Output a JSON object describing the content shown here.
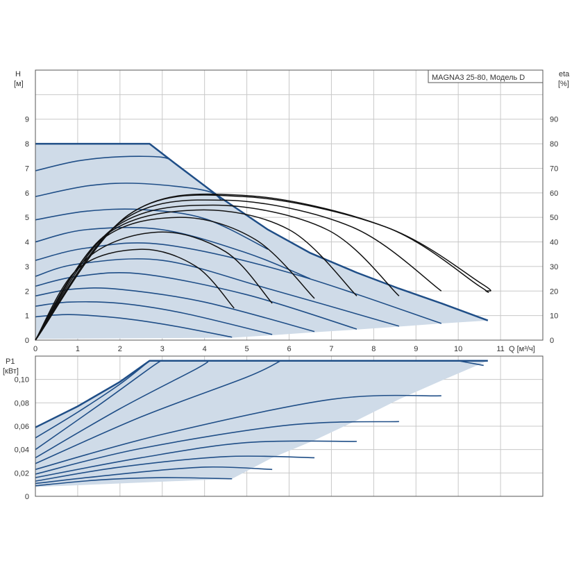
{
  "colors": {
    "curve": "#1f4e87",
    "eta": "#111111",
    "fill": "#cfdbe8",
    "grid": "#c8c8c8",
    "frame": "#555555"
  },
  "chart_data": [
    {
      "type": "line",
      "title": "MAGNA3 25-80, Модель D",
      "xlabel": "Q [м³/ч]",
      "ylabel": "H",
      "ylabel_unit": "[м]",
      "y2label": "eta",
      "y2label_unit": "[%]",
      "xlim": [
        0,
        12
      ],
      "ylim": [
        0,
        11
      ],
      "y2lim": [
        0,
        110
      ],
      "grid": true,
      "x_ticks": [
        "0",
        "1",
        "2",
        "3",
        "4",
        "5",
        "6",
        "7",
        "8",
        "9",
        "10",
        "11"
      ],
      "y_ticks": [
        "0",
        "1",
        "2",
        "3",
        "4",
        "5",
        "6",
        "7",
        "8",
        "9"
      ],
      "y2_ticks": [
        "0",
        "10",
        "20",
        "30",
        "40",
        "50",
        "60",
        "70",
        "80",
        "90"
      ],
      "envelope": [
        [
          0,
          8.0
        ],
        [
          2.7,
          8.0
        ],
        [
          3.3,
          7.2
        ],
        [
          4.3,
          5.9
        ],
        [
          5.5,
          4.5
        ],
        [
          6.5,
          3.55
        ],
        [
          7.6,
          2.75
        ],
        [
          8.6,
          2.1
        ],
        [
          9.6,
          1.5
        ],
        [
          10.7,
          0.8
        ],
        [
          9.6,
          0.68
        ],
        [
          8.6,
          0.55
        ],
        [
          7.6,
          0.43
        ],
        [
          6.6,
          0.32
        ],
        [
          5.6,
          0.2
        ],
        [
          4.65,
          0.1
        ],
        [
          0,
          0.05
        ]
      ],
      "head_curves": [
        {
          "x": [
            0,
            0.8,
            2.0,
            3.2,
            4.65
          ],
          "y": [
            0.95,
            1.04,
            0.9,
            0.6,
            0.12
          ]
        },
        {
          "x": [
            0,
            0.8,
            2.0,
            3.5,
            5.6
          ],
          "y": [
            1.38,
            1.55,
            1.5,
            1.1,
            0.23
          ]
        },
        {
          "x": [
            0,
            0.9,
            2.0,
            4.0,
            6.6
          ],
          "y": [
            1.8,
            2.08,
            2.07,
            1.55,
            0.35
          ]
        },
        {
          "x": [
            0,
            1.0,
            2.5,
            5.0,
            7.6
          ],
          "y": [
            2.2,
            2.6,
            2.7,
            1.85,
            0.45
          ]
        },
        {
          "x": [
            0,
            1.0,
            3.0,
            5.5,
            8.6
          ],
          "y": [
            2.6,
            3.1,
            3.25,
            2.1,
            0.57
          ]
        },
        {
          "x": [
            0,
            1.2,
            3.0,
            6.0,
            9.6
          ],
          "y": [
            3.25,
            3.75,
            3.9,
            2.75,
            0.68
          ]
        },
        {
          "x": [
            0,
            1.2,
            3.0,
            5.0,
            6.5
          ],
          "y": [
            4.0,
            4.5,
            4.5,
            3.55,
            2.5
          ]
        },
        {
          "x": [
            0,
            1.2,
            2.5,
            4.0,
            5.5
          ],
          "y": [
            4.9,
            5.25,
            5.32,
            4.95,
            3.7
          ]
        },
        {
          "x": [
            0,
            1.3,
            2.5,
            4.0,
            4.4
          ],
          "y": [
            5.85,
            6.3,
            6.38,
            6.1,
            5.7
          ]
        },
        {
          "x": [
            0,
            1.0,
            2.0,
            3.0,
            3.3
          ],
          "y": [
            6.9,
            7.3,
            7.47,
            7.45,
            7.2
          ]
        }
      ],
      "eta_curves": [
        {
          "x": [
            0,
            1.0,
            2.5,
            3.8,
            4.7
          ],
          "y": [
            0,
            29,
            37,
            30,
            13
          ]
        },
        {
          "x": [
            0,
            1.2,
            2.9,
            4.5,
            5.6
          ],
          "y": [
            0,
            33,
            44,
            36,
            15
          ]
        },
        {
          "x": [
            0,
            1.5,
            3.4,
            5.2,
            6.6
          ],
          "y": [
            0,
            40,
            50,
            41,
            17
          ]
        },
        {
          "x": [
            0,
            1.6,
            3.8,
            6.0,
            7.6
          ],
          "y": [
            0,
            42,
            53,
            45,
            18
          ]
        },
        {
          "x": [
            0,
            1.8,
            4.2,
            6.9,
            8.6
          ],
          "y": [
            0,
            45,
            55,
            45,
            18
          ]
        },
        {
          "x": [
            0,
            2.0,
            4.5,
            7.5,
            9.6
          ],
          "y": [
            0,
            48,
            57,
            46,
            20
          ]
        },
        {
          "x": [
            0,
            2.2,
            4.9,
            8.3,
            10.5,
            10.65
          ],
          "y": [
            0,
            51,
            59,
            46,
            22,
            20
          ]
        },
        {
          "x": [
            0,
            2.2,
            4.9,
            8.3,
            10.55,
            10.7
          ],
          "y": [
            0,
            51,
            58.5,
            46,
            23,
            20
          ]
        }
      ]
    },
    {
      "type": "line",
      "ylabel": "P1",
      "ylabel_unit": "[кВт]",
      "xlim": [
        0,
        12
      ],
      "ylim": [
        0,
        0.12
      ],
      "grid": true,
      "y_ticks": [
        "0",
        "0,02",
        "0,04",
        "0,06",
        "0,08",
        "0,10"
      ],
      "envelope": [
        [
          0,
          0.059
        ],
        [
          1.0,
          0.077
        ],
        [
          2.0,
          0.098
        ],
        [
          2.7,
          0.116
        ],
        [
          10.7,
          0.116
        ],
        [
          9.6,
          0.099
        ],
        [
          8.6,
          0.083
        ],
        [
          7.6,
          0.065
        ],
        [
          6.6,
          0.048
        ],
        [
          5.6,
          0.033
        ],
        [
          4.65,
          0.015
        ],
        [
          0,
          0.008
        ]
      ],
      "power_curves": [
        {
          "x": [
            0,
            1.5,
            3.0,
            4.65
          ],
          "y": [
            0.009,
            0.014,
            0.016,
            0.015
          ]
        },
        {
          "x": [
            0,
            2.0,
            4.0,
            5.6
          ],
          "y": [
            0.011,
            0.019,
            0.025,
            0.023
          ]
        },
        {
          "x": [
            0,
            2.0,
            4.5,
            6.6
          ],
          "y": [
            0.013,
            0.025,
            0.034,
            0.033
          ]
        },
        {
          "x": [
            0,
            2.5,
            5.0,
            7.6
          ],
          "y": [
            0.016,
            0.033,
            0.046,
            0.047
          ]
        },
        {
          "x": [
            0,
            2.5,
            6.0,
            8.6
          ],
          "y": [
            0.019,
            0.041,
            0.061,
            0.064
          ]
        },
        {
          "x": [
            0,
            3.0,
            7.0,
            9.6
          ],
          "y": [
            0.023,
            0.053,
            0.083,
            0.086
          ]
        },
        {
          "x": [
            0,
            2.5,
            5.0,
            5.8
          ],
          "y": [
            0.028,
            0.068,
            0.102,
            0.116
          ]
        },
        {
          "x": [
            0,
            2.0,
            3.8,
            4.1
          ],
          "y": [
            0.033,
            0.075,
            0.109,
            0.116
          ]
        },
        {
          "x": [
            0,
            1.5,
            2.8,
            3.0
          ],
          "y": [
            0.04,
            0.078,
            0.112,
            0.116
          ]
        },
        {
          "x": [
            0,
            1.0,
            2.0,
            2.7
          ],
          "y": [
            0.05,
            0.072,
            0.096,
            0.116
          ]
        },
        {
          "x": [
            10.0,
            10.6
          ],
          "y": [
            0.116,
            0.112
          ]
        }
      ]
    }
  ]
}
